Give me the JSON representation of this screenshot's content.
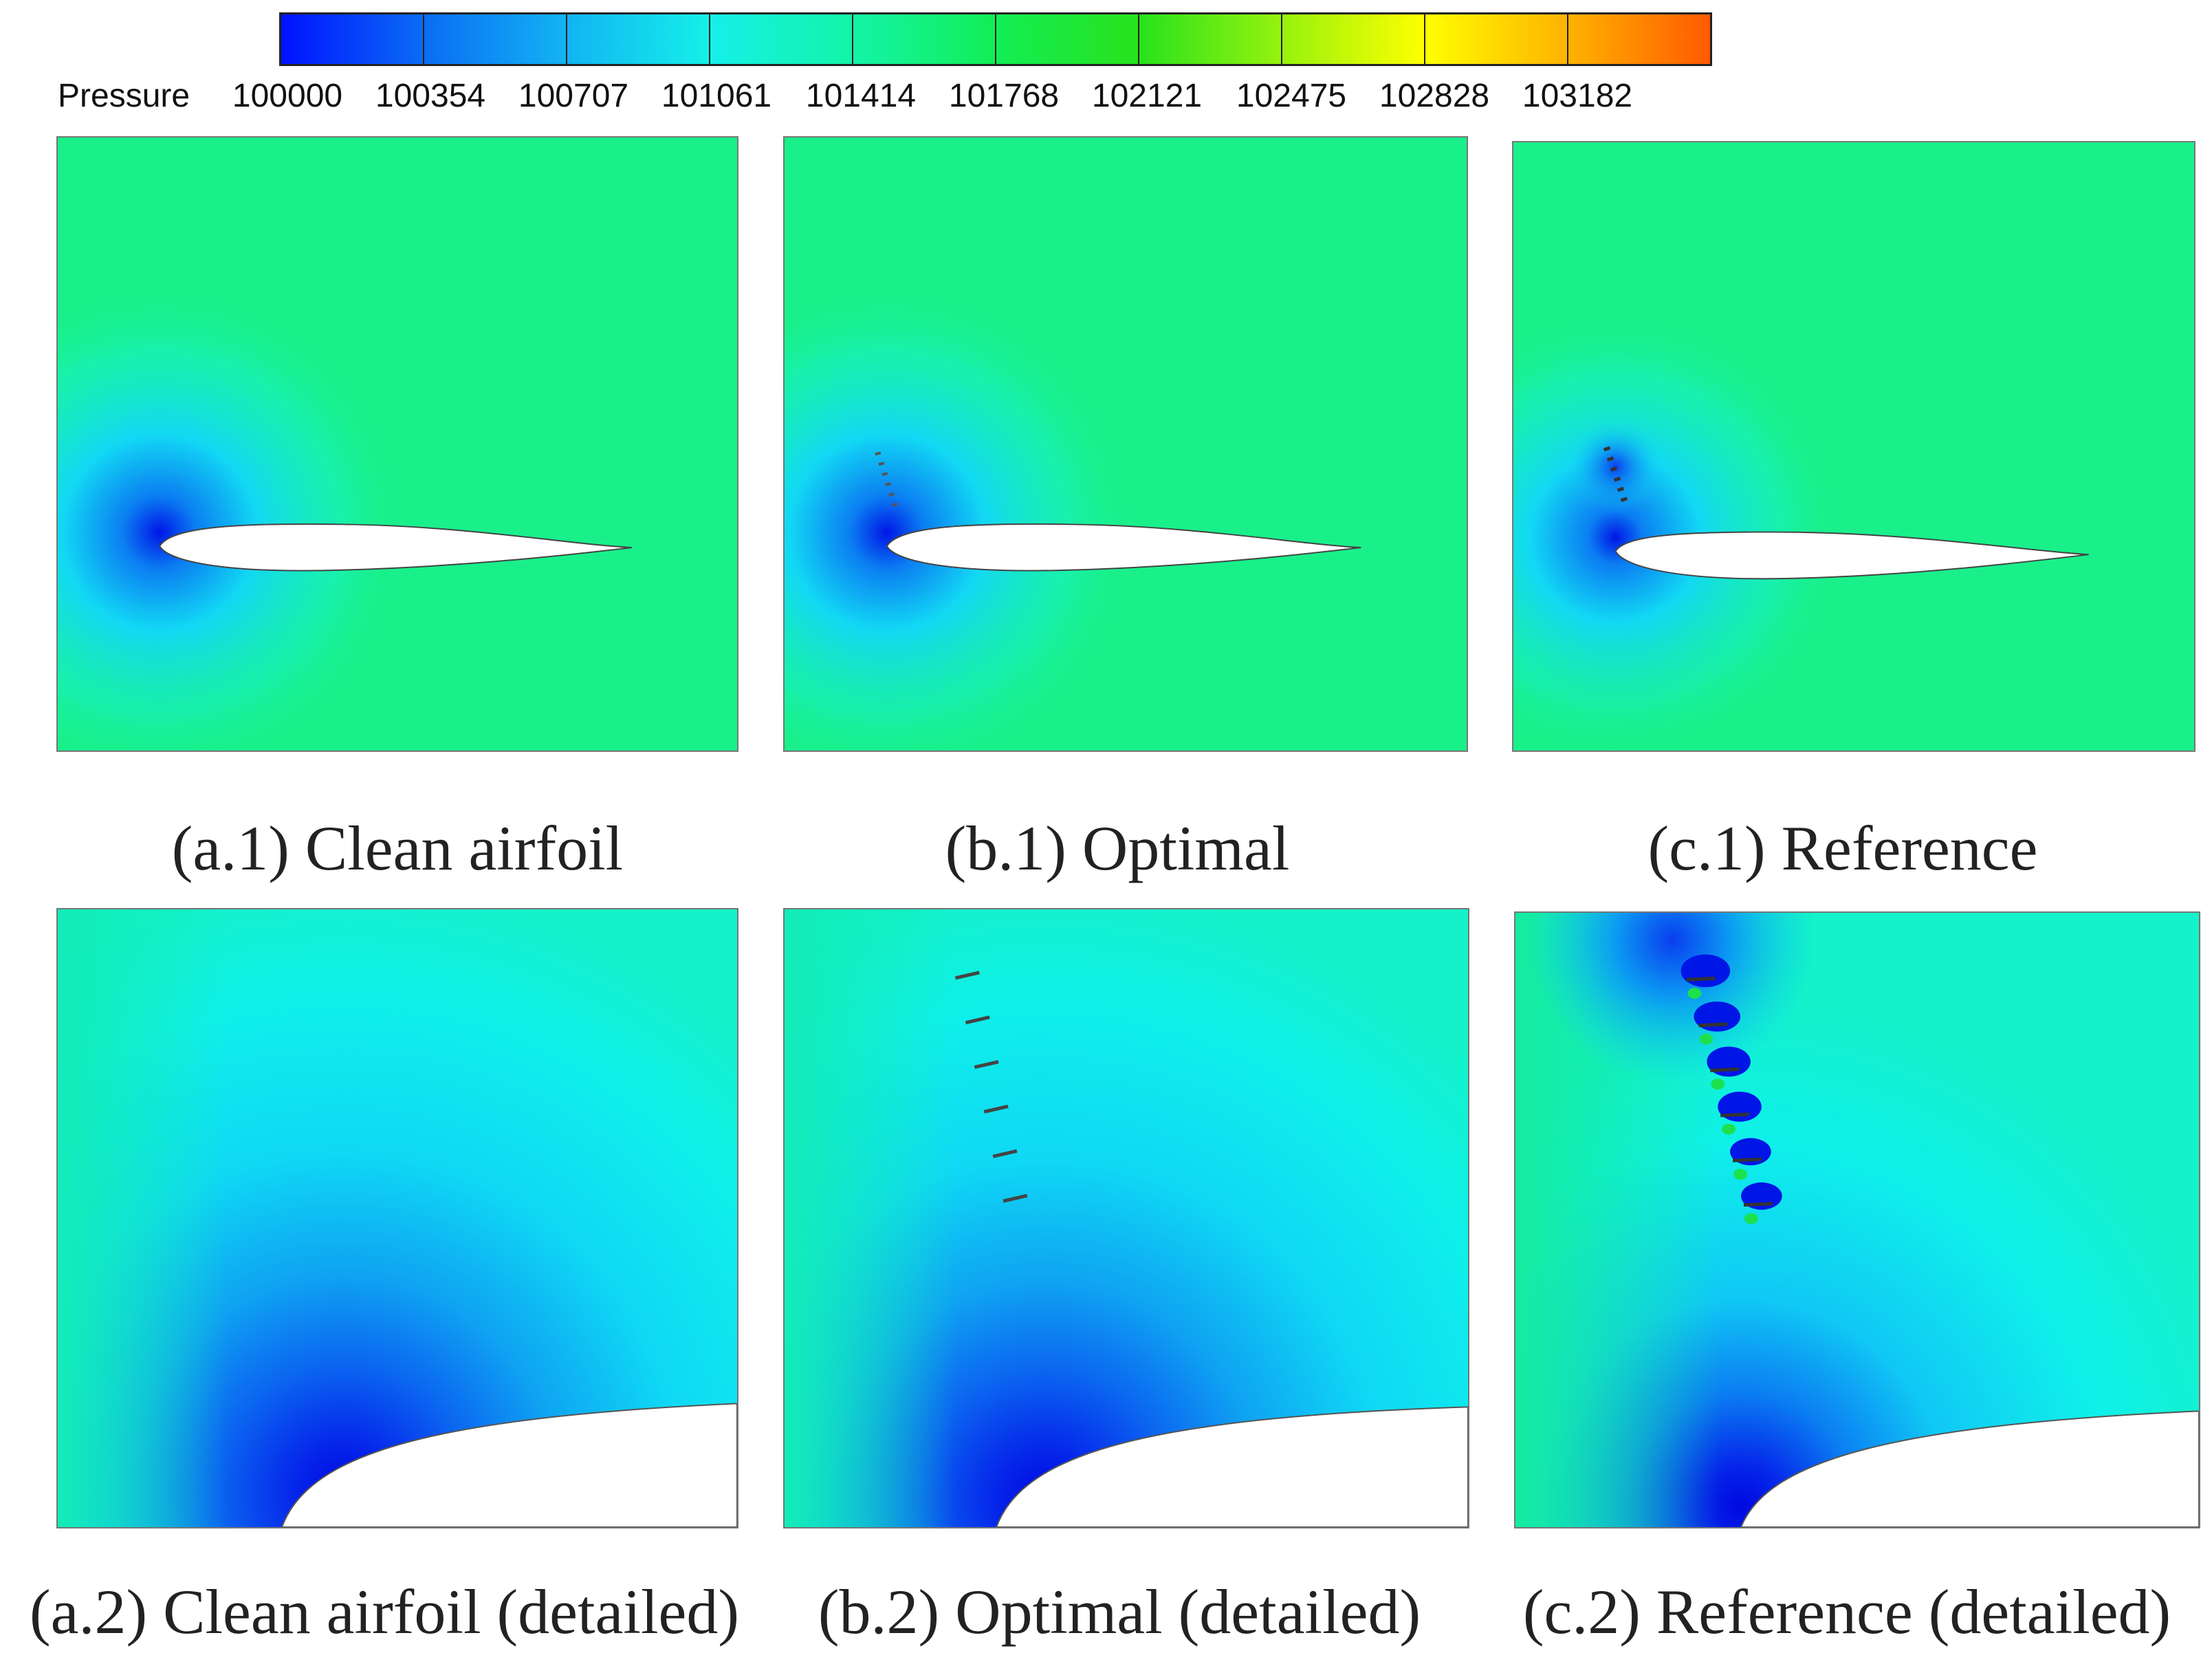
{
  "legend": {
    "title": "Pressure",
    "ticks": [
      "100000",
      "100354",
      "100707",
      "101061",
      "101414",
      "101768",
      "102121",
      "102475",
      "102828",
      "103182"
    ],
    "colors": [
      "#0012ff",
      "#0a6cf5",
      "#12b4f3",
      "#14f0e8",
      "#13f4a8",
      "#12ee55",
      "#28e21c",
      "#96f20e",
      "#ffff00",
      "#ffb200",
      "#ff5a00",
      "#ff1a10"
    ]
  },
  "panels": {
    "a1": {
      "caption": "(a.1) Clean airfoil"
    },
    "b1": {
      "caption": "(b.1) Optimal"
    },
    "c1": {
      "caption": "(c.1) Reference"
    },
    "a2": {
      "caption": "(a.2) Clean airfoil (detailed)"
    },
    "b2": {
      "caption": "(b.2) Optimal (detailed)"
    },
    "c2": {
      "caption": "(c.2) Reference (detailed)"
    }
  },
  "field_colors": {
    "freestream": "#19f08a",
    "high_pressure": "#1de14c",
    "low_pressure": "#0016e6",
    "mid_low": "#10c8f5",
    "cyan": "#08f6ef"
  }
}
